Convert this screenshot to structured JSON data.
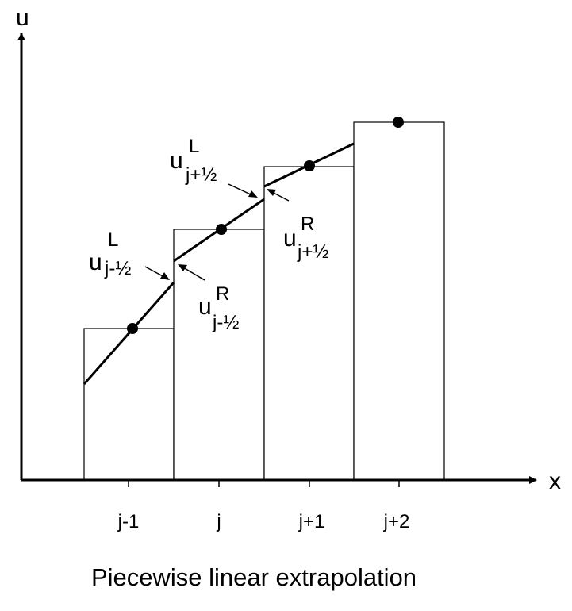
{
  "axes": {
    "x_label": "x",
    "y_label": "u"
  },
  "cells": [
    {
      "label": "j-1",
      "value": 1.0
    },
    {
      "label": "j",
      "value": 1.6
    },
    {
      "label": "j+1",
      "value": 2.0
    },
    {
      "label": "j+2",
      "value": 2.3
    }
  ],
  "interface_labels": [
    {
      "base": "u",
      "sup": "L",
      "sub": "j-½"
    },
    {
      "base": "u",
      "sup": "R",
      "sub": "j-½"
    },
    {
      "base": "u",
      "sup": "L",
      "sub": "j+½"
    },
    {
      "base": "u",
      "sup": "R",
      "sub": "j+½"
    }
  ],
  "caption": "Piecewise linear extrapolation",
  "colors": {
    "stroke": "#000000",
    "fill": "#ffffff"
  }
}
